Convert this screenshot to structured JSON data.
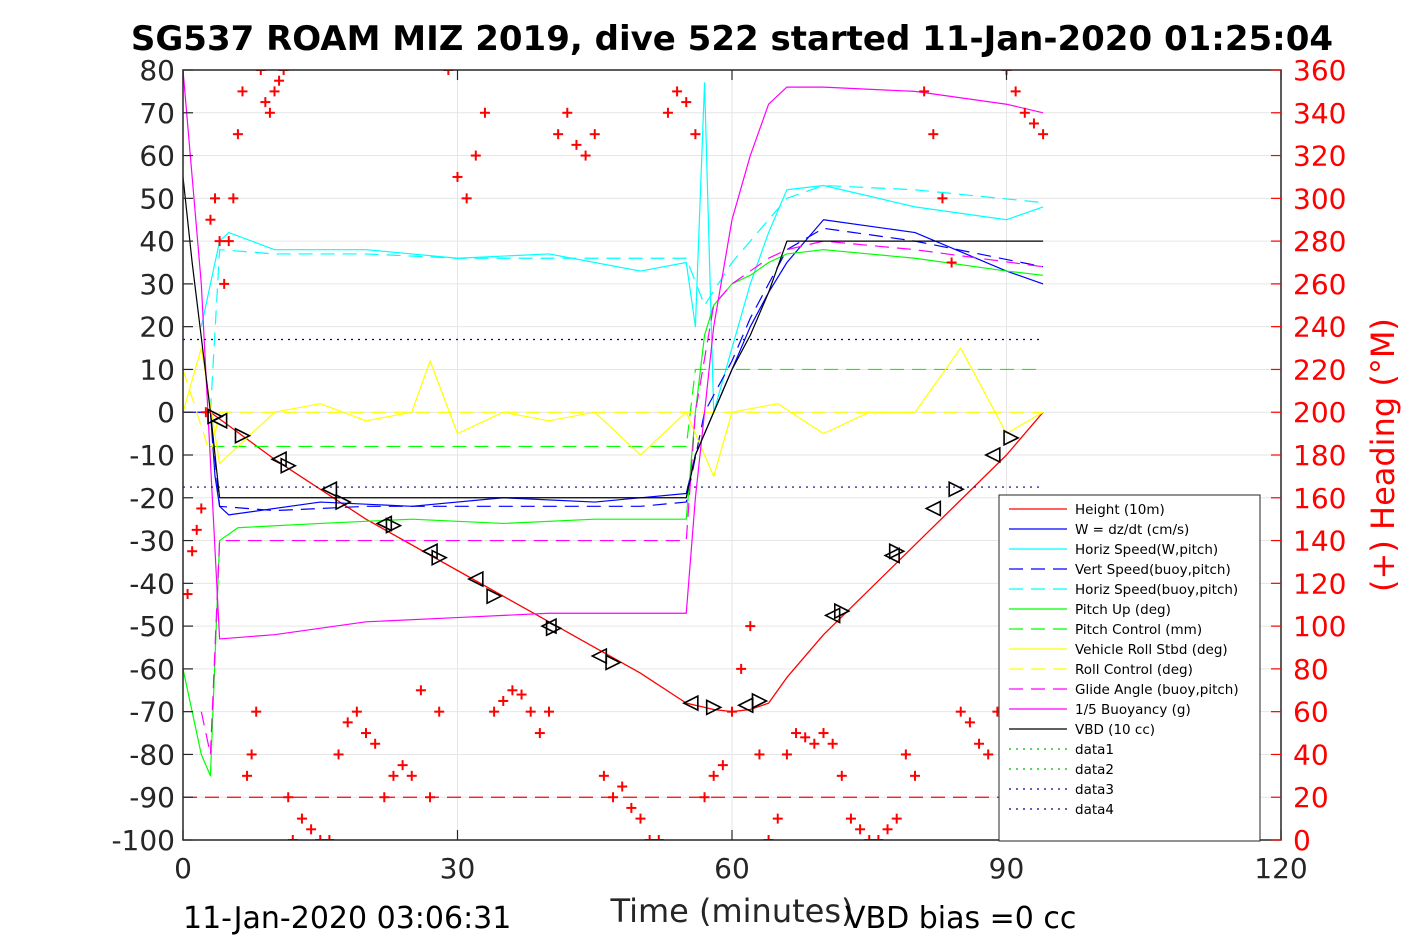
{
  "chart_data": {
    "type": "line",
    "title": "SG537 ROAM MIZ 2019, dive 522 started 11-Jan-2020 01:25:04",
    "xlabel": "Time (minutes)",
    "ylabel_right": "(+) Heading (°M)",
    "footer_left": "11-Jan-2020 03:06:31",
    "footer_right": "VBD bias =0 cc",
    "xlim": [
      0,
      120
    ],
    "ylim": [
      -100,
      80
    ],
    "ylim_right": [
      0,
      360
    ],
    "x_ticks": [
      "0",
      "30",
      "60",
      "90",
      "120"
    ],
    "y_ticks": [
      "80",
      "70",
      "60",
      "50",
      "40",
      "30",
      "20",
      "10",
      "0",
      "-10",
      "-20",
      "-30",
      "-40",
      "-50",
      "-60",
      "-70",
      "-80",
      "-90",
      "-100"
    ],
    "y_ticks_right": [
      "360",
      "340",
      "320",
      "300",
      "280",
      "260",
      "240",
      "220",
      "200",
      "180",
      "160",
      "140",
      "120",
      "100",
      "80",
      "60",
      "40",
      "20",
      "0"
    ],
    "grid": true,
    "legend_position": "bottom-right",
    "series": [
      {
        "name": "Height (10m)",
        "color": "#ff0000",
        "style": "solid",
        "x": [
          3,
          10,
          20,
          30,
          40,
          50,
          55,
          58,
          60,
          62,
          64,
          66,
          70,
          80,
          90,
          94
        ],
        "y": [
          0,
          -11,
          -25,
          -37,
          -49,
          -61,
          -68,
          -69.5,
          -70,
          -69.5,
          -68,
          -62,
          -52,
          -31,
          -10,
          0
        ]
      },
      {
        "name": "W = dz/dt (cm/s)",
        "color": "#0000ff",
        "style": "solid",
        "x": [
          0,
          3,
          3.5,
          4,
          5,
          15,
          25,
          35,
          45,
          55,
          56,
          58,
          60,
          62,
          64,
          66,
          70,
          80,
          90,
          94
        ],
        "y": [
          0,
          0,
          -15,
          -22,
          -24,
          -21,
          -22,
          -20,
          -21,
          -19,
          -10,
          0,
          10,
          20,
          28,
          35,
          45,
          42,
          33,
          30
        ]
      },
      {
        "name": "Horiz Speed(W,pitch)",
        "color": "#00ffff",
        "style": "solid",
        "x": [
          2,
          3,
          4,
          5,
          10,
          20,
          30,
          40,
          50,
          55,
          56,
          57,
          58,
          60,
          62,
          64,
          66,
          70,
          80,
          90,
          94
        ],
        "y": [
          20,
          30,
          40,
          42,
          38,
          38,
          36,
          37,
          33,
          35,
          20,
          77,
          0,
          15,
          30,
          42,
          52,
          53,
          48,
          45,
          48
        ]
      },
      {
        "name": "Vert Speed(buoy,pitch)",
        "color": "#0000ff",
        "style": "dashed",
        "x": [
          3,
          4,
          10,
          20,
          30,
          40,
          50,
          55,
          57,
          60,
          62,
          64,
          66,
          70,
          80,
          94
        ],
        "y": [
          0,
          -22,
          -23,
          -22,
          -22,
          -22,
          -22,
          -21,
          0,
          12,
          22,
          30,
          38,
          43,
          40,
          34
        ]
      },
      {
        "name": "Horiz Speed(buoy,pitch)",
        "color": "#00ffff",
        "style": "dashed",
        "x": [
          3,
          4,
          10,
          20,
          30,
          40,
          50,
          55,
          57,
          60,
          62,
          64,
          66,
          70,
          80,
          94
        ],
        "y": [
          0,
          38,
          37,
          37,
          36,
          36,
          36,
          36,
          25,
          35,
          40,
          45,
          50,
          53,
          52,
          49
        ]
      },
      {
        "name": "Pitch Up (deg)",
        "color": "#00ff00",
        "style": "solid",
        "x": [
          0,
          1,
          2,
          3,
          4,
          6,
          15,
          25,
          35,
          45,
          55,
          56,
          57,
          58,
          60,
          62,
          64,
          66,
          70,
          80,
          90,
          94
        ],
        "y": [
          -60,
          -70,
          -80,
          -85,
          -30,
          -27,
          -26,
          -25,
          -26,
          -25,
          -25,
          0,
          18,
          25,
          30,
          32,
          35,
          37,
          38,
          36,
          33,
          32
        ]
      },
      {
        "name": "Pitch Control (mm)",
        "color": "#00ff00",
        "style": "dashed",
        "x": [
          3,
          55,
          56,
          94
        ],
        "y": [
          -8,
          -8,
          10,
          10
        ]
      },
      {
        "name": "Vehicle Roll Stbd (deg)",
        "color": "#ffff00",
        "style": "solid",
        "x": [
          0,
          2,
          4,
          6,
          10,
          15,
          20,
          25,
          27,
          30,
          35,
          40,
          45,
          50,
          55,
          58,
          60,
          65,
          70,
          75,
          80,
          85,
          90,
          94
        ],
        "y": [
          0,
          15,
          -12,
          -8,
          0,
          2,
          -2,
          0,
          12,
          -5,
          0,
          -2,
          0,
          -10,
          0,
          -15,
          0,
          2,
          -5,
          0,
          0,
          15,
          -5,
          0
        ]
      },
      {
        "name": "Roll Control (deg)",
        "color": "#ffff00",
        "style": "dashed",
        "x": [
          0,
          3,
          4,
          94
        ],
        "y": [
          10,
          -10,
          0,
          0
        ]
      },
      {
        "name": "Glide Angle (buoy,pitch)",
        "color": "#ff00ff",
        "style": "dashed",
        "x": [
          2,
          3,
          4,
          10,
          20,
          30,
          40,
          50,
          55,
          56,
          58,
          60,
          62,
          64,
          66,
          70,
          80,
          94
        ],
        "y": [
          -70,
          -80,
          -30,
          -30,
          -30,
          -30,
          -30,
          -30,
          -30,
          0,
          25,
          30,
          33,
          36,
          38,
          40,
          38,
          34
        ]
      },
      {
        "name": "1/5 Buoyancy (g)",
        "color": "#ff00ff",
        "style": "solid",
        "x": [
          0,
          2,
          4,
          10,
          20,
          30,
          40,
          50,
          55,
          56,
          58,
          60,
          62,
          64,
          66,
          70,
          80,
          90,
          94
        ],
        "y": [
          80,
          30,
          -53,
          -52,
          -49,
          -48,
          -47,
          -47,
          -47,
          -20,
          20,
          45,
          60,
          72,
          76,
          76,
          75,
          72,
          70
        ]
      },
      {
        "name": "VBD (10 cc)",
        "color": "#000000",
        "style": "solid",
        "x": [
          0,
          1,
          3,
          4,
          10,
          30,
          55,
          56,
          58,
          60,
          62,
          64,
          66,
          70,
          80,
          94
        ],
        "y": [
          55,
          35,
          0,
          -20,
          -20,
          -20,
          -20,
          -10,
          0,
          10,
          18,
          28,
          40,
          40,
          40,
          40
        ]
      },
      {
        "name": "data1",
        "color": "#00b400",
        "style": "dotted",
        "x": [],
        "y": []
      },
      {
        "name": "data2",
        "color": "#00b400",
        "style": "dotted",
        "x": [],
        "y": []
      },
      {
        "name": "data3",
        "color": "#00008b",
        "style": "dotted",
        "x": [
          0,
          94
        ],
        "y": [
          17,
          17
        ]
      },
      {
        "name": "data4",
        "color": "#00008b",
        "style": "dotted",
        "x": [
          0,
          94
        ],
        "y": [
          -17.5,
          -17.5
        ]
      }
    ],
    "reference_line": {
      "color": "#ff0000",
      "style": "dashed",
      "x": [
        0,
        94
      ],
      "y": [
        -90,
        -90
      ]
    },
    "heading_points": {
      "color": "#ff0000",
      "marker": "+",
      "x": [
        0.5,
        1,
        1.5,
        2,
        2.5,
        3,
        3.5,
        4,
        4.5,
        5,
        5.5,
        6,
        6.5,
        7,
        7.5,
        8,
        8.5,
        9,
        9.5,
        10,
        10.5,
        11,
        11.5,
        12,
        13,
        14,
        15,
        16,
        17,
        18,
        19,
        20,
        21,
        22,
        23,
        24,
        25,
        26,
        27,
        28,
        29,
        30,
        31,
        32,
        33,
        34,
        35,
        36,
        37,
        38,
        39,
        40,
        41,
        42,
        43,
        44,
        45,
        46,
        47,
        48,
        49,
        50,
        51,
        52,
        53,
        54,
        55,
        56,
        57,
        58,
        59,
        60,
        61,
        62,
        63,
        64,
        65,
        66,
        67,
        68,
        69,
        70,
        71,
        72,
        73,
        74,
        75,
        76,
        77,
        78,
        79,
        80,
        81,
        82,
        83,
        84,
        85,
        86,
        87,
        88,
        89,
        90,
        91,
        92,
        93,
        94
      ],
      "y": [
        115,
        135,
        145,
        155,
        200,
        290,
        300,
        280,
        260,
        280,
        300,
        330,
        350,
        30,
        40,
        60,
        360,
        345,
        340,
        350,
        355,
        360,
        20,
        0,
        10,
        5,
        0,
        0,
        40,
        55,
        60,
        50,
        45,
        20,
        30,
        35,
        30,
        70,
        20,
        60,
        360,
        310,
        300,
        320,
        340,
        60,
        65,
        70,
        68,
        60,
        50,
        60,
        330,
        340,
        325,
        320,
        330,
        30,
        20,
        25,
        15,
        10,
        0,
        0,
        340,
        350,
        345,
        330,
        20,
        30,
        35,
        60,
        80,
        100,
        40,
        0,
        10,
        40,
        50,
        48,
        45,
        50,
        45,
        30,
        10,
        5,
        0,
        0,
        5,
        10,
        40,
        30,
        350,
        330,
        300,
        270,
        60,
        55,
        45,
        40,
        60,
        360,
        350,
        340,
        335,
        330
      ]
    },
    "triangle_markers": {
      "color": "#000000",
      "x": [
        3.5,
        4,
        6.5,
        10.5,
        11.5,
        16,
        17.5,
        22,
        23,
        27,
        28,
        32,
        34,
        40,
        40.5,
        45.5,
        47,
        55.5,
        58,
        61.5,
        63,
        71,
        72,
        77.5,
        78,
        82,
        84.5,
        88.5,
        90.5
      ],
      "y": [
        -1,
        -2,
        -5.5,
        -11,
        -12.5,
        -18,
        -21,
        -26,
        -26.5,
        -32.5,
        -34,
        -39,
        -43,
        -50,
        -50.5,
        -57,
        -58.5,
        -68,
        -69,
        -68.5,
        -67.5,
        -47.5,
        -46.5,
        -33.5,
        -32.5,
        -22.5,
        -18,
        -10,
        -6
      ]
    }
  }
}
